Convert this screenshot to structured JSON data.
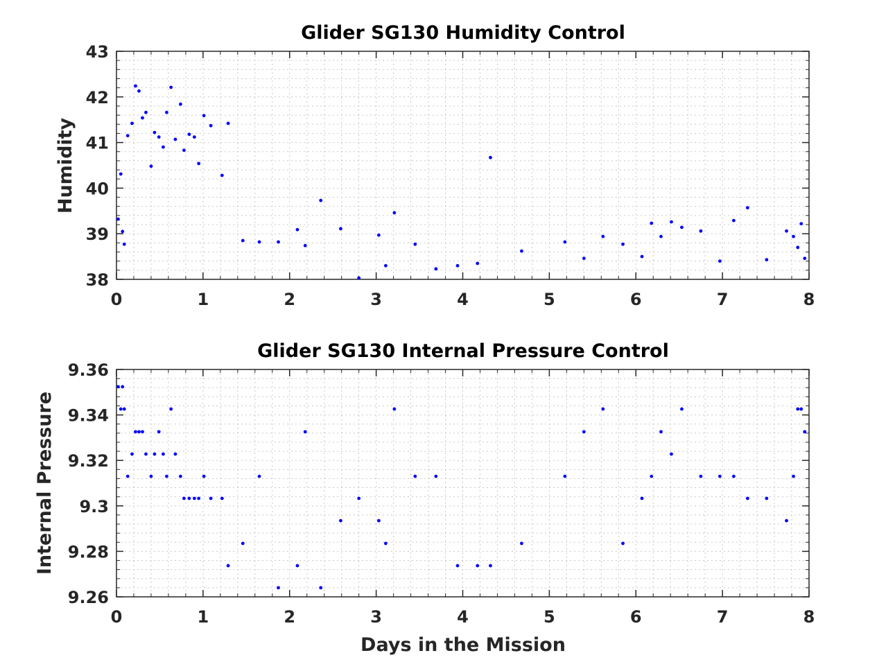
{
  "chart_data": [
    {
      "type": "scatter",
      "title": "Glider SG130 Humidity Control",
      "xlabel": "",
      "ylabel": "Humidity",
      "xlim": [
        0,
        8
      ],
      "ylim": [
        38,
        43
      ],
      "xticks": [
        "0",
        "1",
        "2",
        "3",
        "4",
        "5",
        "6",
        "7",
        "8"
      ],
      "yticks": [
        "38",
        "39",
        "40",
        "41",
        "42",
        "43"
      ],
      "grid": "minor dotted",
      "marker_color": "#0000ff",
      "x": [
        0.02,
        0.05,
        0.07,
        0.09,
        0.13,
        0.18,
        0.22,
        0.26,
        0.3,
        0.34,
        0.4,
        0.44,
        0.49,
        0.54,
        0.58,
        0.63,
        0.68,
        0.74,
        0.78,
        0.84,
        0.9,
        0.95,
        1.01,
        1.09,
        1.22,
        1.29,
        1.46,
        1.65,
        1.87,
        2.09,
        2.18,
        2.36,
        2.59,
        2.8,
        3.03,
        3.11,
        3.21,
        3.45,
        3.69,
        3.94,
        4.17,
        4.32,
        4.68,
        5.18,
        5.4,
        5.62,
        5.85,
        6.07,
        6.18,
        6.29,
        6.41,
        6.53,
        6.75,
        6.97,
        7.13,
        7.29,
        7.51,
        7.74,
        7.82,
        7.87,
        7.91,
        7.95
      ],
      "y": [
        39.32,
        40.31,
        39.05,
        38.77,
        41.15,
        41.42,
        42.24,
        42.13,
        41.54,
        41.66,
        40.48,
        41.22,
        41.12,
        40.9,
        41.66,
        42.21,
        41.07,
        41.84,
        40.83,
        41.18,
        41.12,
        40.54,
        41.59,
        41.37,
        40.28,
        41.42,
        38.85,
        38.82,
        38.82,
        39.09,
        38.74,
        39.73,
        39.11,
        38.03,
        38.97,
        38.3,
        39.46,
        38.77,
        38.23,
        38.3,
        38.35,
        40.67,
        38.62,
        38.82,
        38.46,
        38.94,
        38.77,
        38.5,
        39.23,
        38.94,
        39.26,
        39.14,
        39.06,
        38.4,
        39.29,
        39.57,
        38.43,
        39.06,
        38.94,
        38.7,
        39.22,
        38.46
      ]
    },
    {
      "type": "scatter",
      "title": "Glider SG130 Internal Pressure Control",
      "xlabel": "Days in the Mission",
      "ylabel": "Internal Pressure",
      "xlim": [
        0,
        8
      ],
      "ylim": [
        9.26,
        9.36
      ],
      "xticks": [
        "0",
        "1",
        "2",
        "3",
        "4",
        "5",
        "6",
        "7",
        "8"
      ],
      "yticks": [
        "9.26",
        "9.28",
        "9.3",
        "9.32",
        "9.34",
        "9.36"
      ],
      "grid": "minor dotted",
      "marker_color": "#0000ff",
      "x": [
        0.02,
        0.05,
        0.07,
        0.09,
        0.13,
        0.18,
        0.22,
        0.26,
        0.3,
        0.34,
        0.4,
        0.44,
        0.49,
        0.54,
        0.58,
        0.63,
        0.68,
        0.74,
        0.78,
        0.84,
        0.9,
        0.95,
        1.01,
        1.09,
        1.22,
        1.29,
        1.46,
        1.65,
        1.87,
        2.09,
        2.18,
        2.36,
        2.59,
        2.8,
        3.03,
        3.11,
        3.21,
        3.45,
        3.69,
        3.94,
        4.17,
        4.32,
        4.68,
        5.18,
        5.4,
        5.62,
        5.85,
        6.07,
        6.18,
        6.29,
        6.41,
        6.53,
        6.75,
        6.97,
        7.13,
        7.29,
        7.51,
        7.74,
        7.82,
        7.87,
        7.91,
        7.95
      ],
      "y": [
        9.3524,
        9.3426,
        9.3524,
        9.3426,
        9.313,
        9.3228,
        9.3326,
        9.3326,
        9.3326,
        9.3228,
        9.313,
        9.3228,
        9.3326,
        9.3228,
        9.313,
        9.3426,
        9.3228,
        9.313,
        9.3033,
        9.3033,
        9.3033,
        9.3033,
        9.313,
        9.3033,
        9.3033,
        9.2737,
        9.2835,
        9.313,
        9.264,
        9.2737,
        9.3326,
        9.264,
        9.2935,
        9.3033,
        9.2935,
        9.2835,
        9.3426,
        9.313,
        9.313,
        9.2737,
        9.2737,
        9.2737,
        9.2835,
        9.313,
        9.3326,
        9.3426,
        9.2835,
        9.3033,
        9.313,
        9.3326,
        9.3228,
        9.3426,
        9.313,
        9.313,
        9.313,
        9.3033,
        9.3033,
        9.2935,
        9.313,
        9.3426,
        9.3426,
        9.3326
      ]
    }
  ]
}
